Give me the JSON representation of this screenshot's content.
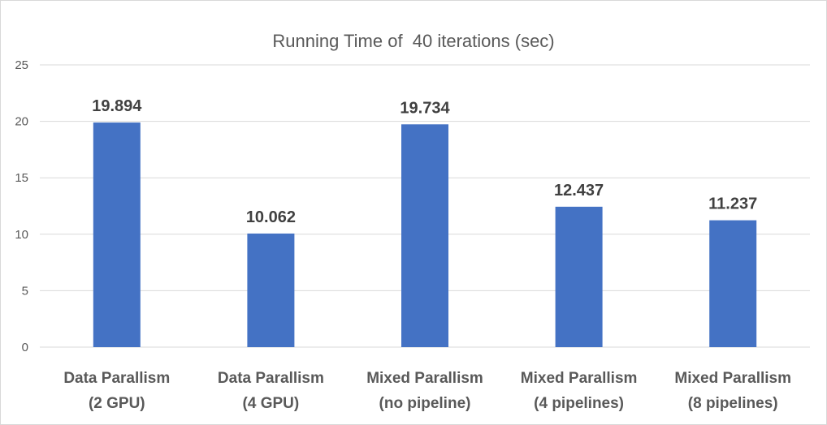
{
  "chart_data": {
    "type": "bar",
    "title": "Running Time of  40 iterations (sec)",
    "categories": [
      [
        "Data Parallism",
        "(2 GPU)"
      ],
      [
        "Data Parallism",
        "(4 GPU)"
      ],
      [
        "Mixed Parallism",
        "(no pipeline)"
      ],
      [
        "Mixed Parallism",
        "(4 pipelines)"
      ],
      [
        "Mixed Parallism",
        "(8 pipelines)"
      ]
    ],
    "values": [
      19.894,
      10.062,
      19.734,
      12.437,
      11.237
    ],
    "value_labels": [
      "19.894",
      "10.062",
      "19.734",
      "12.437",
      "11.237"
    ],
    "ylim": [
      0,
      25
    ],
    "yticks": [
      0,
      5,
      10,
      15,
      20,
      25
    ],
    "grid": true,
    "legend": "none",
    "bar_color": "#4472C4",
    "grid_color": "#d9d9d9"
  }
}
